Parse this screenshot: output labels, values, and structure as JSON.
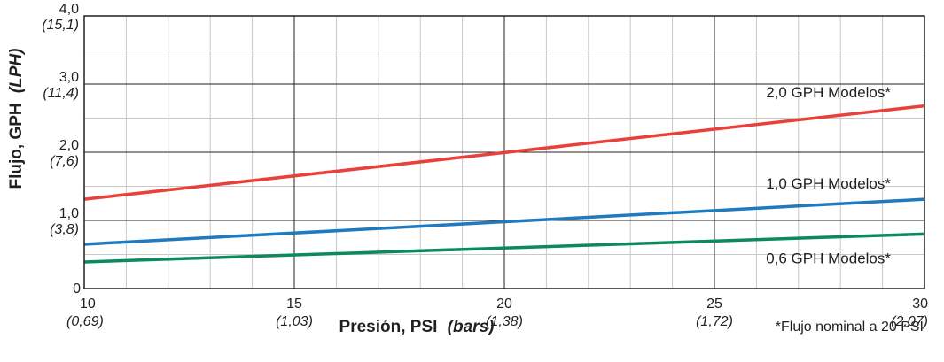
{
  "chart_data": {
    "type": "line",
    "xlabel": "Presión, PSI",
    "xlabel_unit": "(bars)",
    "ylabel": "Flujo, GPH",
    "ylabel_unit": "(LPH)",
    "xlim": [
      10,
      30
    ],
    "ylim": [
      0,
      4
    ],
    "x_ticks": [
      {
        "value": 10,
        "label": "10",
        "sub": "(0,69)"
      },
      {
        "value": 15,
        "label": "15",
        "sub": "(1,03)"
      },
      {
        "value": 20,
        "label": "20",
        "sub": "(1,38)"
      },
      {
        "value": 25,
        "label": "25",
        "sub": "(1,72)"
      },
      {
        "value": 30,
        "label": "30",
        "sub": "(2,07)"
      }
    ],
    "y_ticks": [
      {
        "value": 0,
        "label": "0",
        "sub": ""
      },
      {
        "value": 1,
        "label": "1,0",
        "sub": "(3,8)"
      },
      {
        "value": 2,
        "label": "2,0",
        "sub": "(7,6)"
      },
      {
        "value": 3,
        "label": "3,0",
        "sub": "(11,4)"
      },
      {
        "value": 4,
        "label": "4,0",
        "sub": "(15,1)"
      }
    ],
    "x_minor_step": 1,
    "y_minor_step": 0.5,
    "grid": true,
    "series": [
      {
        "name": "2,0 GPH Modelos*",
        "color": "#e8403a",
        "x": [
          10,
          30
        ],
        "y": [
          1.31,
          2.68
        ]
      },
      {
        "name": "1,0 GPH Modelos*",
        "color": "#1f7ac0",
        "x": [
          10,
          30
        ],
        "y": [
          0.65,
          1.31
        ]
      },
      {
        "name": "0,6 GPH Modelos*",
        "color": "#0d8a5a",
        "x": [
          10,
          30
        ],
        "y": [
          0.39,
          0.8
        ]
      }
    ],
    "note": "*Flujo nominal a 20 PSI"
  }
}
